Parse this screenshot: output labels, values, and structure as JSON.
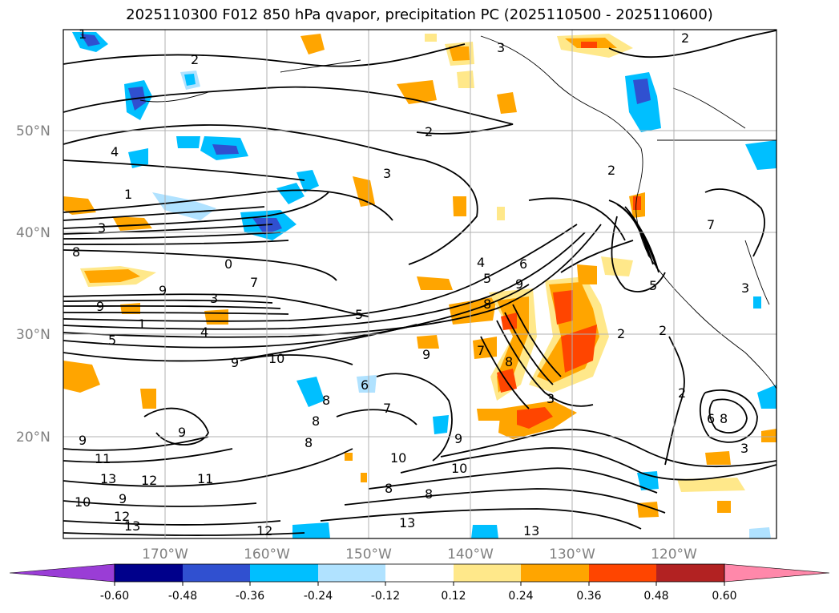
{
  "title": "2025110300 F012 850 hPa qvapor, precipitation PC (2025110500 - 2025110600)",
  "map": {
    "lat_labels": [
      "50°N",
      "40°N",
      "30°N",
      "20°N"
    ],
    "lon_labels": [
      "170°W",
      "160°W",
      "150°W",
      "140°W",
      "130°W",
      "120°W"
    ],
    "lat_values": [
      50,
      40,
      30,
      20
    ],
    "lon_values": [
      -170,
      -160,
      -150,
      -140,
      -130,
      -120
    ],
    "extent": {
      "lon_min": -180,
      "lon_max": -110,
      "lat_min": 10,
      "lat_max": 60
    },
    "grid": true
  },
  "colorbar": {
    "ticks": [
      "-0.60",
      "-0.48",
      "-0.36",
      "-0.24",
      "-0.12",
      "0.12",
      "0.24",
      "0.36",
      "0.48",
      "0.60"
    ],
    "colors": [
      "#9a3dd6",
      "#00008b",
      "#3050d0",
      "#00bfff",
      "#b0e2ff",
      "#ffffff",
      "#ffe88a",
      "#ffa500",
      "#ff4500",
      "#b22222",
      "#ff88aa"
    ]
  },
  "contour_labels": [
    "1",
    "2",
    "2",
    "3",
    "4",
    "2",
    "3",
    "1",
    "3",
    "8",
    "0",
    "9",
    "7",
    "9",
    "3",
    "5",
    "1",
    "4",
    "9",
    "10",
    "5",
    "4",
    "5",
    "6",
    "9",
    "9",
    "8",
    "7",
    "8",
    "3",
    "2",
    "2",
    "2",
    "8",
    "6",
    "5",
    "7",
    "3",
    "9",
    "8",
    "7",
    "8",
    "9",
    "10",
    "10",
    "8",
    "8",
    "13",
    "13",
    "11",
    "9",
    "12",
    "11",
    "10",
    "13",
    "12",
    "13",
    "12",
    "6",
    "8",
    "3",
    "9",
    "2"
  ]
}
